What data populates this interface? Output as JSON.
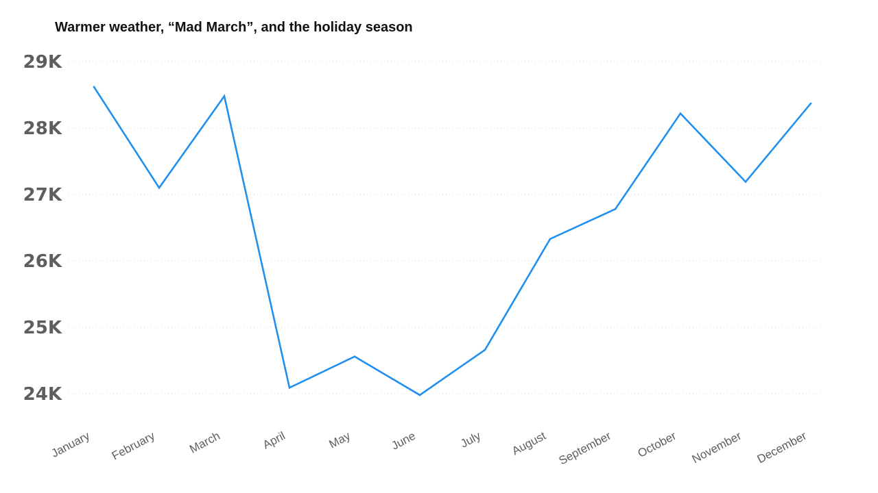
{
  "chart_data": {
    "type": "line",
    "title": "Warmer weather, “Mad March”, and the holiday season",
    "xlabel": "",
    "ylabel": "",
    "categories": [
      "January",
      "February",
      "March",
      "April",
      "May",
      "June",
      "July",
      "August",
      "September",
      "October",
      "November",
      "December"
    ],
    "series": [
      {
        "values": [
          28620,
          27100,
          28480,
          24090,
          24560,
          23980,
          24660,
          26330,
          26780,
          28220,
          27190,
          28370
        ]
      }
    ],
    "ylim": [
      23500,
      29000
    ],
    "y_ticks": [
      24000,
      25000,
      26000,
      27000,
      28000,
      29000
    ],
    "y_tick_labels": [
      "24K",
      "25K",
      "26K",
      "27K",
      "28K",
      "29K"
    ],
    "grid": true,
    "legend": "none",
    "colors": {
      "line": "#1f8ff0",
      "grid": "#d9d9d9",
      "axis_text": "#605e5c",
      "title_text": "#111111"
    }
  }
}
